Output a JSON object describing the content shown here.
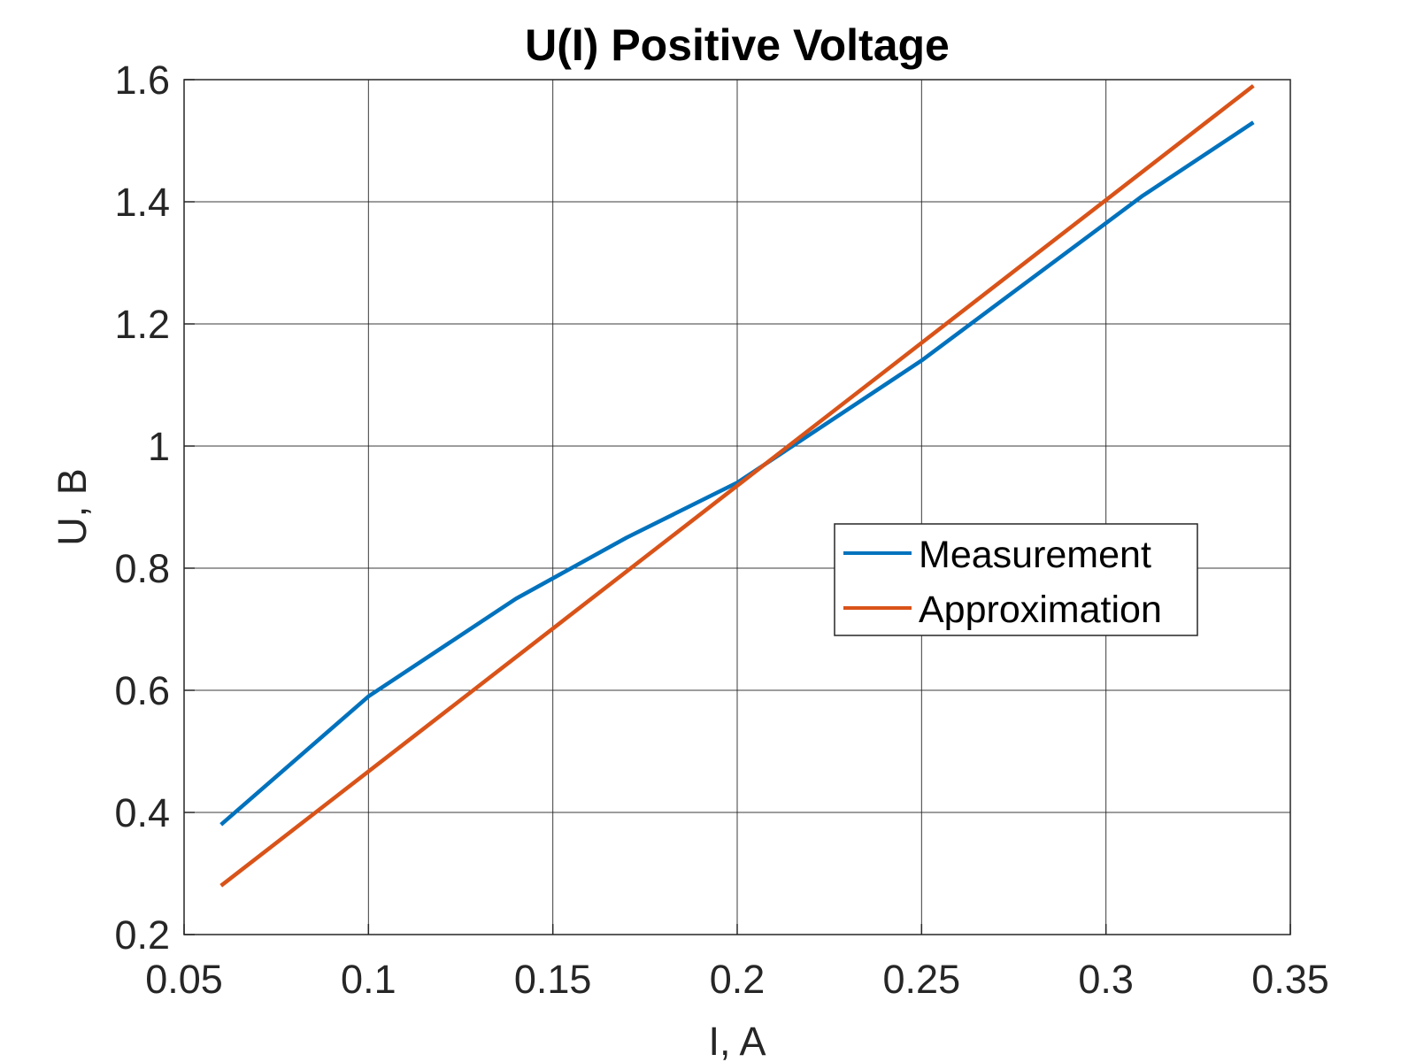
{
  "chart_data": {
    "type": "line",
    "title": "U(I) Positive Voltage",
    "xlabel": "I, A",
    "ylabel": "U, B",
    "xlim": [
      0.05,
      0.35
    ],
    "ylim": [
      0.2,
      1.6
    ],
    "xticks": [
      0.05,
      0.1,
      0.15,
      0.2,
      0.25,
      0.3,
      0.35
    ],
    "yticks": [
      0.2,
      0.4,
      0.6,
      0.8,
      1,
      1.2,
      1.4,
      1.6
    ],
    "xtick_labels": [
      "0.05",
      "0.1",
      "0.15",
      "0.2",
      "0.25",
      "0.3",
      "0.35"
    ],
    "ytick_labels": [
      "0.2",
      "0.4",
      "0.6",
      "0.8",
      "1",
      "1.2",
      "1.4",
      "1.6"
    ],
    "grid": true,
    "legend_position": "center-right",
    "series": [
      {
        "name": "Measurement",
        "color": "#0072BD",
        "x": [
          0.06,
          0.1,
          0.14,
          0.17,
          0.2,
          0.25,
          0.31,
          0.34
        ],
        "y": [
          0.38,
          0.59,
          0.75,
          0.85,
          0.94,
          1.14,
          1.41,
          1.53
        ]
      },
      {
        "name": "Approximation",
        "color": "#D95319",
        "x": [
          0.06,
          0.34
        ],
        "y": [
          0.28,
          1.59
        ]
      }
    ]
  }
}
